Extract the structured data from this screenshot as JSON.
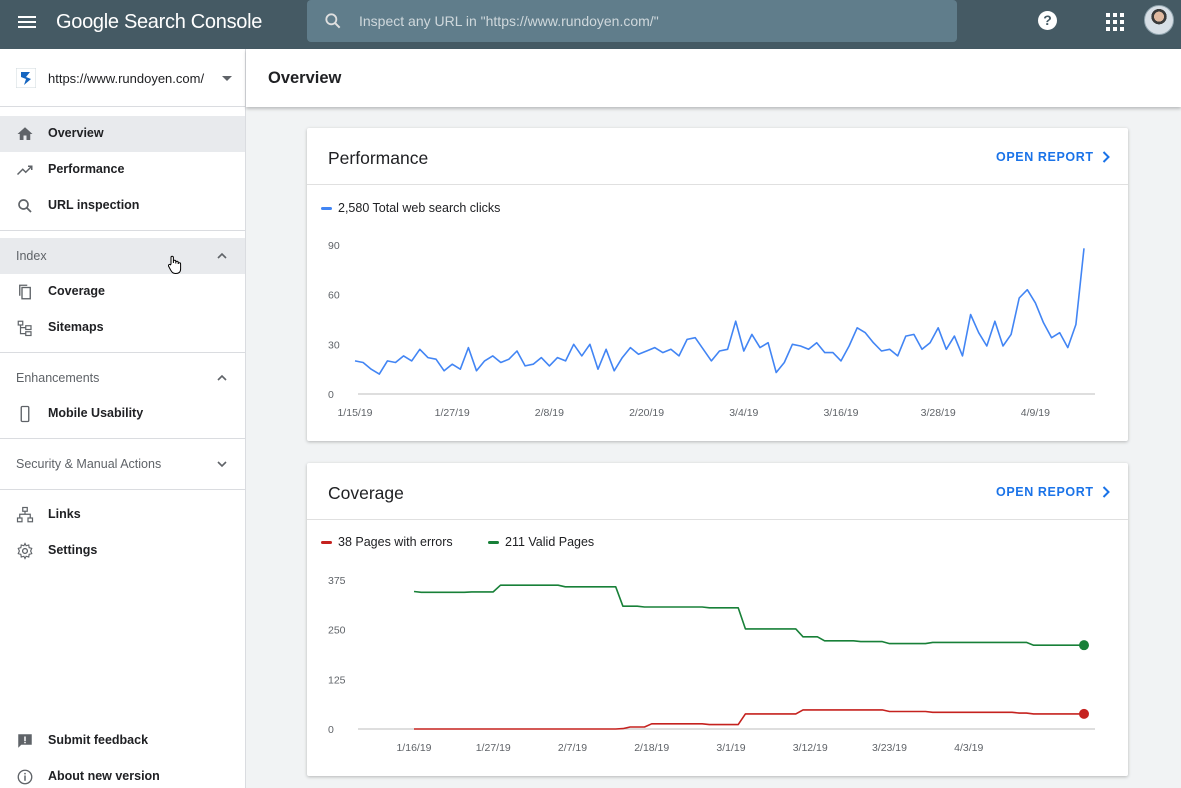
{
  "app": {
    "brand": "Google Search Console",
    "search_placeholder": "Inspect any URL in \"https://www.rundoyen.com/\"",
    "help_label": "?"
  },
  "property": {
    "url": "https://www.rundoyen.com/"
  },
  "sidebar": {
    "items": [
      {
        "label": "Overview",
        "icon": "home-icon",
        "active": true
      },
      {
        "label": "Performance",
        "icon": "trending-up-icon"
      },
      {
        "label": "URL inspection",
        "icon": "search-icon"
      }
    ],
    "index": {
      "label": "Index",
      "items": [
        {
          "label": "Coverage",
          "icon": "copy-icon"
        },
        {
          "label": "Sitemaps",
          "icon": "sitemap-icon"
        }
      ]
    },
    "enhancements": {
      "label": "Enhancements",
      "items": [
        {
          "label": "Mobile Usability",
          "icon": "phone-icon"
        }
      ]
    },
    "security": {
      "label": "Security & Manual Actions"
    },
    "links": {
      "label": "Links",
      "icon": "links-icon"
    },
    "settings": {
      "label": "Settings",
      "icon": "gear-icon"
    },
    "feedback": {
      "label": "Submit feedback",
      "icon": "feedback-icon"
    },
    "about": {
      "label": "About new version",
      "icon": "info-icon"
    }
  },
  "main": {
    "title": "Overview"
  },
  "performance_card": {
    "title": "Performance",
    "open_label": "OPEN REPORT",
    "legend": "2,580 Total web search clicks",
    "color": "#4285f4"
  },
  "coverage_card": {
    "title": "Coverage",
    "open_label": "OPEN REPORT",
    "legend_errors": "38 Pages with errors",
    "legend_valid": "211 Valid Pages",
    "error_color": "#c5221f",
    "valid_color": "#188038"
  },
  "chart_data": [
    {
      "type": "line",
      "ylim": [
        0,
        90
      ],
      "yticks": [
        "90",
        "60",
        "30",
        "0"
      ],
      "ytick_values": [
        90,
        60,
        30,
        0
      ],
      "xticks": [
        "1/15/19",
        "1/27/19",
        "2/8/19",
        "2/20/19",
        "3/4/19",
        "3/16/19",
        "3/28/19",
        "4/9/19"
      ],
      "xtick_index": [
        0,
        12,
        24,
        36,
        48,
        60,
        72,
        84
      ],
      "series": [
        {
          "name": "Total web search clicks",
          "values": [
            20,
            19,
            15,
            12,
            20,
            19,
            23,
            20,
            27,
            22,
            21,
            14,
            18,
            15,
            28,
            14,
            20,
            23,
            19,
            21,
            26,
            17,
            18,
            22,
            17,
            22,
            20,
            30,
            23,
            30,
            15,
            27,
            14,
            22,
            28,
            24,
            26,
            28,
            25,
            27,
            23,
            33,
            34,
            27,
            20,
            26,
            27,
            44,
            26,
            36,
            28,
            31,
            13,
            19,
            30,
            29,
            27,
            31,
            25,
            25,
            20,
            29,
            40,
            37,
            31,
            26,
            27,
            23,
            35,
            36,
            27,
            31,
            40,
            27,
            35,
            23,
            48,
            37,
            29,
            44,
            29,
            36,
            58,
            63,
            55,
            43,
            34,
            37,
            28,
            42,
            88
          ]
        }
      ]
    },
    {
      "type": "line",
      "ylim": [
        0,
        375
      ],
      "yticks": [
        "375",
        "250",
        "125",
        "0"
      ],
      "ytick_values": [
        375,
        250,
        125,
        0
      ],
      "xticks": [
        "1/16/19",
        "1/27/19",
        "2/7/19",
        "2/18/19",
        "3/1/19",
        "3/12/19",
        "3/23/19",
        "4/3/19"
      ],
      "xtick_index": [
        0,
        11,
        22,
        33,
        44,
        55,
        66,
        77
      ],
      "series": [
        {
          "name": "Valid Pages",
          "values": [
            346,
            344,
            344,
            344,
            344,
            344,
            344,
            344,
            345,
            345,
            345,
            345,
            362,
            362,
            362,
            362,
            362,
            362,
            362,
            362,
            362,
            358,
            358,
            358,
            358,
            358,
            358,
            358,
            358,
            309,
            309,
            309,
            307,
            307,
            307,
            307,
            307,
            307,
            307,
            307,
            307,
            305,
            305,
            305,
            305,
            305,
            252,
            252,
            252,
            252,
            252,
            252,
            252,
            252,
            232,
            232,
            232,
            222,
            222,
            222,
            222,
            222,
            220,
            220,
            220,
            220,
            215,
            215,
            215,
            215,
            215,
            215,
            218,
            218,
            218,
            218,
            218,
            218,
            218,
            218,
            218,
            218,
            218,
            218,
            218,
            218,
            211,
            211,
            211,
            211,
            211,
            211,
            211,
            211
          ]
        },
        {
          "name": "Pages with errors",
          "values": [
            0,
            0,
            0,
            0,
            0,
            0,
            0,
            0,
            0,
            0,
            0,
            0,
            0,
            0,
            0,
            0,
            0,
            0,
            0,
            0,
            0,
            0,
            0,
            0,
            0,
            0,
            0,
            0,
            0,
            1,
            5,
            5,
            5,
            13,
            13,
            13,
            13,
            13,
            13,
            13,
            13,
            11,
            11,
            11,
            11,
            11,
            38,
            38,
            38,
            38,
            38,
            38,
            38,
            38,
            48,
            48,
            48,
            48,
            48,
            48,
            48,
            48,
            48,
            48,
            48,
            48,
            44,
            44,
            44,
            44,
            44,
            44,
            42,
            42,
            42,
            42,
            42,
            42,
            42,
            42,
            42,
            42,
            42,
            42,
            40,
            40,
            38,
            38,
            38,
            38,
            38,
            38,
            38,
            38
          ]
        }
      ]
    }
  ]
}
